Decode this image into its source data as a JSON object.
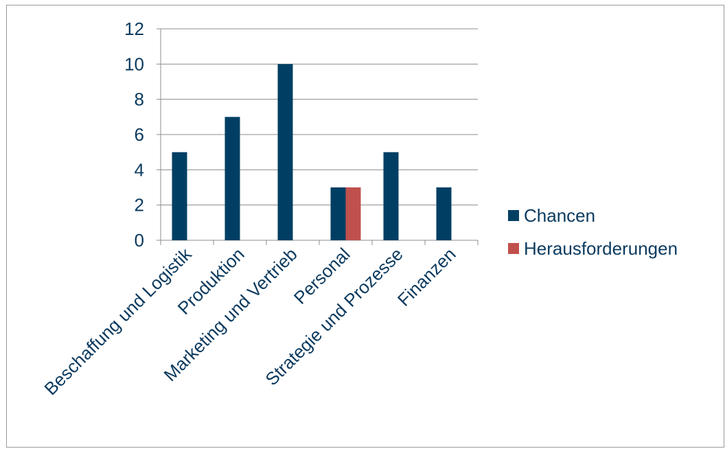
{
  "chart_data": {
    "type": "bar",
    "categories": [
      "Beschaffung und Logistik",
      "Produktion",
      "Marketing und Vertrieb",
      "Personal",
      "Strategie und Prozesse",
      "Finanzen"
    ],
    "series": [
      {
        "name": "Chancen",
        "values": [
          5,
          7,
          10,
          3,
          5,
          3
        ],
        "color": "#003f63"
      },
      {
        "name": "Herausforderungen",
        "values": [
          0,
          0,
          0,
          3,
          0,
          0
        ],
        "color": "#c0504d"
      }
    ],
    "ylim": [
      0,
      12
    ],
    "yticks": [
      0,
      2,
      4,
      6,
      8,
      10,
      12
    ],
    "grid": true,
    "legend": "right",
    "title": "",
    "xlabel": "",
    "ylabel": ""
  }
}
